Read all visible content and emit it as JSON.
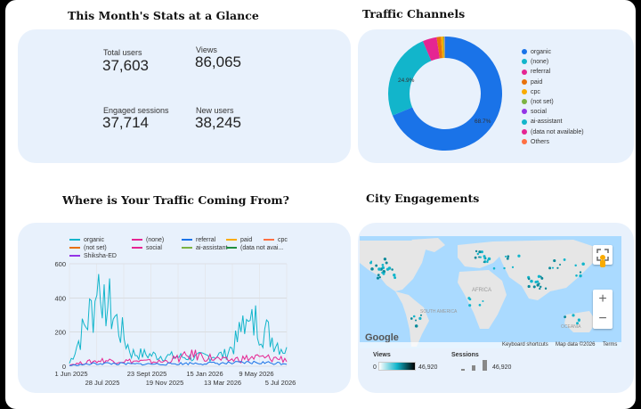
{
  "stats": {
    "heading": "This Month's Stats at a Glance",
    "total_users_label": "Total users",
    "total_users_value": "37,603",
    "views_label": "Views",
    "views_value": "86,065",
    "engaged_label": "Engaged sessions",
    "engaged_value": "37,714",
    "new_users_label": "New users",
    "new_users_value": "38,245"
  },
  "channels": {
    "heading": "Traffic Channels",
    "slices": [
      {
        "label": "organic",
        "percent": 68.7,
        "color": "#1a73e8"
      },
      {
        "label": "(none)",
        "percent": 24.9,
        "color": "#12b5cb"
      },
      {
        "label": "referral",
        "percent": 4.0,
        "color": "#e52592"
      },
      {
        "label": "paid",
        "percent": 1.2,
        "color": "#e8710a"
      },
      {
        "label": "cpc",
        "percent": 0.7,
        "color": "#f9ab00"
      },
      {
        "label": "(not set)",
        "percent": 0.3,
        "color": "#7cb342"
      },
      {
        "label": "social",
        "percent": 0.1,
        "color": "#9334e6"
      },
      {
        "label": "ai-assistant",
        "percent": 0.05,
        "color": "#12b5cb"
      },
      {
        "label": "(data not available)",
        "percent": 0.03,
        "color": "#e52592"
      },
      {
        "label": "Others",
        "percent": 0.02,
        "color": "#ff7043"
      }
    ],
    "label_organic_pct": "68.7%",
    "label_none_pct": "24.9%"
  },
  "traffic": {
    "heading": "Where is Your Traffic Coming From?",
    "legend": [
      {
        "label": "organic",
        "color": "#12b5cb"
      },
      {
        "label": "(none)",
        "color": "#e52592"
      },
      {
        "label": "referral",
        "color": "#1a73e8"
      },
      {
        "label": "paid",
        "color": "#f9ab00"
      },
      {
        "label": "cpc",
        "color": "#ff7043"
      },
      {
        "label": "(not set)",
        "color": "#e8710a"
      },
      {
        "label": "social",
        "color": "#e52592"
      },
      {
        "label": "ai-assistant",
        "color": "#7cb342"
      },
      {
        "label": "(data not avai...",
        "color": "#1e8e3e"
      },
      {
        "label": "Shiksha-ED",
        "color": "#9334e6"
      }
    ],
    "y_ticks": [
      "600",
      "400",
      "200",
      "0"
    ],
    "x_ticks_top": [
      "1 Jun 2025",
      "23 Sept 2025",
      "15 Jan 2026",
      "9 May 2026"
    ],
    "x_ticks_bottom": [
      "28 Jul 2025",
      "19 Nov 2025",
      "13 Mar 2026",
      "5 Jul 2026"
    ]
  },
  "chart_data": {
    "type": "line",
    "ylim": [
      0,
      600
    ],
    "x": [
      "1 Jun 2025",
      "28 Jul 2025",
      "23 Sept 2025",
      "19 Nov 2025",
      "15 Jan 2026",
      "13 Mar 2026",
      "9 May 2026",
      "5 Jul 2026"
    ],
    "series": [
      {
        "name": "organic",
        "values": [
          20,
          540,
          90,
          70,
          60,
          80,
          310,
          100
        ]
      },
      {
        "name": "(none)",
        "values": [
          10,
          40,
          35,
          30,
          80,
          40,
          60,
          50
        ]
      },
      {
        "name": "referral",
        "values": [
          5,
          20,
          15,
          15,
          20,
          20,
          25,
          20
        ]
      }
    ]
  },
  "city": {
    "heading": "City Engagements",
    "map_labels": {
      "africa": "AFRICA",
      "south_america": "SOUTH\nAMERICA",
      "oceania": "OCEANIA"
    },
    "google": "Google",
    "keyboard": "Keyboard shortcuts",
    "map_data": "Map data ©2026",
    "terms": "Terms",
    "views_label": "Views",
    "views_min": "0",
    "views_max": "46,920",
    "sessions_label": "Sessions",
    "sessions_max": "46,920",
    "zoom_in": "+",
    "zoom_out": "−"
  }
}
